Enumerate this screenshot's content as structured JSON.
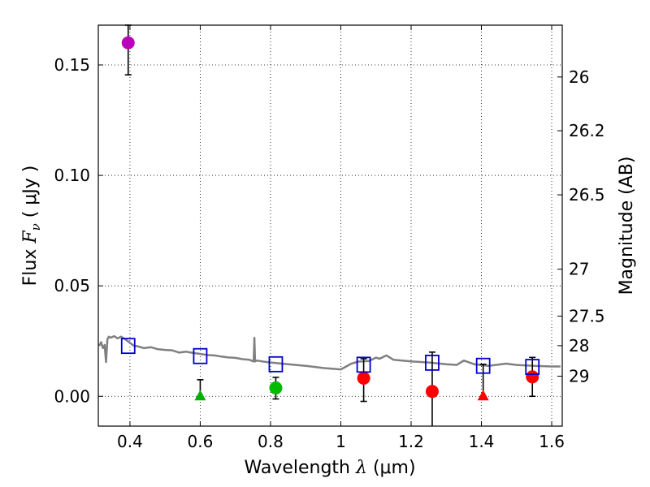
{
  "chart_data": {
    "type": "scatter",
    "xlabel_text": "Wavelength",
    "xlabel_sym": "λ",
    "xlabel_unit": "(μm)",
    "ylabel_text": "Flux",
    "ylabel_sym": "F",
    "ylabel_sub": "ν",
    "ylabel_unit": "( μJy )",
    "y2label": "Magnitude (AB)",
    "xlim": [
      0.31,
      1.63
    ],
    "ylim": [
      -0.0135,
      0.168
    ],
    "grid": true,
    "x_ticks": [
      0.4,
      0.6,
      0.8,
      1.0,
      1.2,
      1.4,
      1.6
    ],
    "x_tick_labels": [
      "0.4",
      "0.6",
      "0.8",
      "1",
      "1.2",
      "1.4",
      "1.6"
    ],
    "y_ticks": [
      0.0,
      0.05,
      0.1,
      0.15
    ],
    "y_tick_labels": [
      "0.00",
      "0.05",
      "0.10",
      "0.15"
    ],
    "mag_ticks": [
      26,
      26.2,
      26.5,
      27,
      27.5,
      28,
      29
    ],
    "mag_tick_labels": [
      "26",
      "26.2",
      "26.5",
      "27",
      "27.5",
      "28",
      "29"
    ],
    "mag_zero_point": 23.9,
    "model_sed": {
      "color": "#808080",
      "x": [
        0.312,
        0.318,
        0.323,
        0.328,
        0.332,
        0.336,
        0.34,
        0.345,
        0.355,
        0.365,
        0.375,
        0.385,
        0.395,
        0.41,
        0.425,
        0.44,
        0.46,
        0.48,
        0.5,
        0.52,
        0.54,
        0.56,
        0.58,
        0.6,
        0.62,
        0.64,
        0.66,
        0.68,
        0.7,
        0.72,
        0.74,
        0.752,
        0.754,
        0.756,
        0.76,
        0.78,
        0.8,
        0.85,
        0.9,
        0.95,
        1.0,
        1.03,
        1.05,
        1.08,
        1.1,
        1.11,
        1.13,
        1.15,
        1.2,
        1.25,
        1.3,
        1.33,
        1.35,
        1.38,
        1.42,
        1.47,
        1.5,
        1.55,
        1.6,
        1.625
      ],
      "y": [
        0.0228,
        0.0245,
        0.0218,
        0.0232,
        0.0155,
        0.0258,
        0.027,
        0.0265,
        0.0272,
        0.0262,
        0.027,
        0.026,
        0.0248,
        0.023,
        0.0225,
        0.0218,
        0.0222,
        0.0213,
        0.021,
        0.0208,
        0.0198,
        0.0202,
        0.0196,
        0.0192,
        0.0187,
        0.0185,
        0.018,
        0.0176,
        0.0174,
        0.0168,
        0.0165,
        0.0158,
        0.0265,
        0.0158,
        0.0162,
        0.0157,
        0.0153,
        0.0145,
        0.0138,
        0.0128,
        0.0122,
        0.0148,
        0.0157,
        0.016,
        0.0175,
        0.017,
        0.0185,
        0.0165,
        0.0158,
        0.0153,
        0.0145,
        0.0142,
        0.0162,
        0.0145,
        0.0138,
        0.0148,
        0.0142,
        0.0138,
        0.0135,
        0.0135
      ]
    },
    "model_photometry": {
      "marker": "open-square",
      "color": "#0000cc",
      "x": [
        0.395,
        0.6,
        0.815,
        1.065,
        1.26,
        1.405,
        1.545
      ],
      "y": [
        0.0228,
        0.0182,
        0.0145,
        0.0143,
        0.0152,
        0.0138,
        0.0133
      ]
    },
    "observed": [
      {
        "x": 0.395,
        "y": 0.16,
        "err_low": 0.0145,
        "err_high": 0.008,
        "marker": "circle",
        "color": "#bb00bb"
      },
      {
        "x": 0.6,
        "y": 0.0,
        "err_low": 0.0,
        "err_high": 0.0075,
        "marker": "triangle",
        "color": "#00b000"
      },
      {
        "x": 0.815,
        "y": 0.0038,
        "err_low": 0.005,
        "err_high": 0.0048,
        "marker": "circle",
        "color": "#00bb00"
      },
      {
        "x": 1.065,
        "y": 0.0082,
        "err_low": 0.0105,
        "err_high": 0.0088,
        "marker": "circle",
        "color": "#ff0000"
      },
      {
        "x": 1.26,
        "y": 0.0022,
        "err_low": 0.0175,
        "err_high": 0.0178,
        "marker": "circle",
        "color": "#ff0000"
      },
      {
        "x": 1.405,
        "y": 0.0,
        "err_low": 0.0,
        "err_high": 0.0145,
        "marker": "triangle",
        "color": "#ff0000"
      },
      {
        "x": 1.545,
        "y": 0.0088,
        "err_low": 0.0088,
        "err_high": 0.0088,
        "marker": "circle",
        "color": "#ff0000"
      }
    ]
  }
}
